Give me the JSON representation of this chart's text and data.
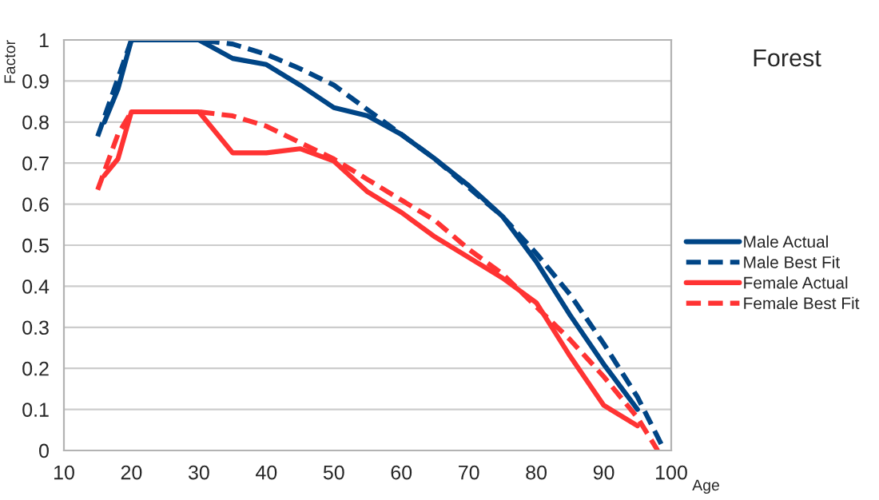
{
  "chart_data": {
    "type": "line",
    "title": "Forest",
    "xlabel": "Age",
    "ylabel": "Factor",
    "xlim": [
      10,
      100
    ],
    "xticks": [
      10,
      20,
      30,
      40,
      50,
      60,
      70,
      80,
      90,
      100
    ],
    "ylim": [
      0,
      1
    ],
    "yticks": [
      0,
      0.1,
      0.2,
      0.3,
      0.4,
      0.5,
      0.6,
      0.7,
      0.8,
      0.9,
      1
    ],
    "grid": "y",
    "legend": "right",
    "marker": "none",
    "series": [
      {
        "name": "Male Actual",
        "color": "#004586",
        "line_style": "solid",
        "x": [
          16,
          18,
          20,
          25,
          30,
          35,
          40,
          45,
          50,
          55,
          60,
          65,
          70,
          75,
          80,
          85,
          90,
          95
        ],
        "values": [
          0.8,
          0.88,
          1.0,
          1.0,
          1.0,
          0.955,
          0.94,
          0.89,
          0.835,
          0.815,
          0.77,
          0.71,
          0.645,
          0.57,
          0.46,
          0.33,
          0.21,
          0.1
        ]
      },
      {
        "name": "Male Best Fit",
        "color": "#004586",
        "line_style": "dashed",
        "x": [
          15,
          20,
          30,
          35,
          40,
          45,
          50,
          55,
          60,
          65,
          70,
          75,
          80,
          85,
          90,
          95,
          99
        ],
        "values": [
          0.765,
          1.0,
          1.0,
          0.99,
          0.965,
          0.93,
          0.89,
          0.83,
          0.77,
          0.71,
          0.64,
          0.57,
          0.48,
          0.38,
          0.26,
          0.13,
          0
        ]
      },
      {
        "name": "Female Actual",
        "color": "#ff3333",
        "line_style": "solid",
        "x": [
          16,
          18,
          20,
          30,
          35,
          40,
          45,
          50,
          55,
          60,
          65,
          70,
          75,
          80,
          85,
          90,
          95
        ],
        "values": [
          0.67,
          0.71,
          0.825,
          0.825,
          0.725,
          0.725,
          0.735,
          0.705,
          0.63,
          0.58,
          0.52,
          0.47,
          0.42,
          0.36,
          0.23,
          0.11,
          0.06
        ]
      },
      {
        "name": "Female Best Fit",
        "color": "#ff3333",
        "line_style": "dashed",
        "x": [
          15,
          18,
          20,
          30,
          35,
          40,
          45,
          50,
          55,
          60,
          65,
          70,
          75,
          80,
          85,
          90,
          95,
          98
        ],
        "values": [
          0.635,
          0.77,
          0.825,
          0.825,
          0.815,
          0.79,
          0.75,
          0.71,
          0.66,
          0.61,
          0.56,
          0.49,
          0.43,
          0.35,
          0.27,
          0.18,
          0.08,
          0
        ]
      }
    ]
  }
}
